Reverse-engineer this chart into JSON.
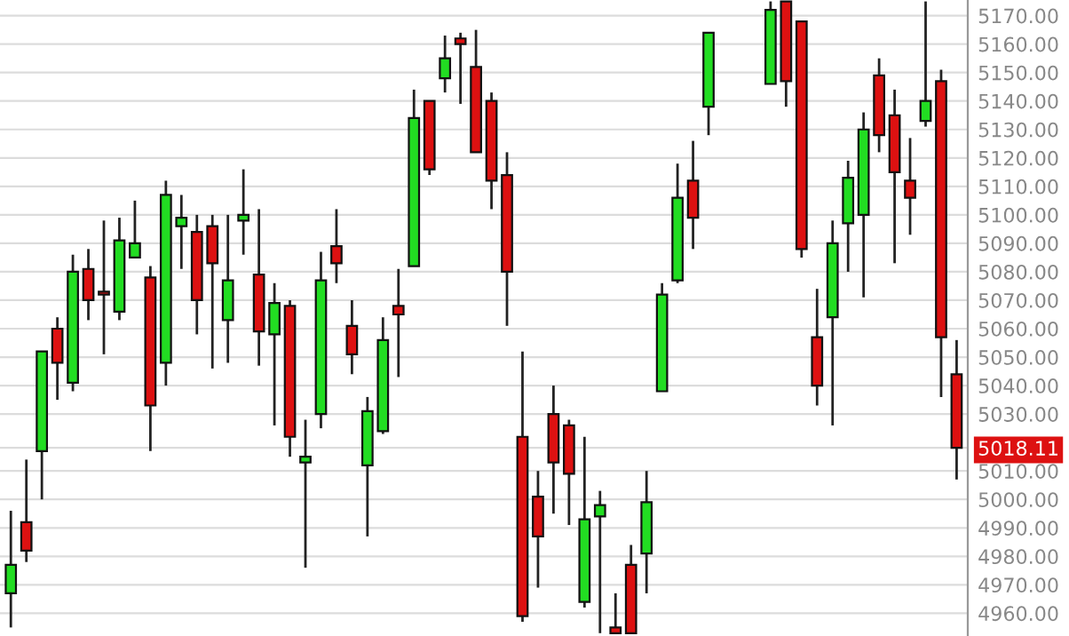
{
  "chart_data": {
    "type": "candlestick",
    "categories": [
      null,
      null,
      null,
      null,
      null,
      null,
      null,
      null,
      null,
      null,
      null,
      null,
      null,
      null,
      null,
      null,
      null,
      null,
      null,
      null,
      null,
      null,
      null,
      null,
      null,
      null,
      null,
      null,
      null,
      null,
      null,
      null,
      null,
      null,
      null,
      null,
      null,
      null,
      null,
      null,
      null,
      null,
      null,
      null,
      null,
      null,
      null,
      null,
      null,
      null,
      null,
      null,
      null,
      null,
      null,
      null,
      null,
      null,
      null,
      null,
      null,
      null
    ],
    "ohlc": [
      [
        4967,
        4996,
        4955,
        4977
      ],
      [
        4992,
        5014,
        4978,
        4982
      ],
      [
        5017,
        5052,
        5000,
        5052
      ],
      [
        5060,
        5064,
        5035,
        5048
      ],
      [
        5041,
        5086,
        5038,
        5080
      ],
      [
        5081,
        5088,
        5063,
        5070
      ],
      [
        5073,
        5098,
        5051,
        5072
      ],
      [
        5066,
        5099,
        5063,
        5091
      ],
      [
        5085,
        5105,
        5085,
        5090
      ],
      [
        5078,
        5082,
        5017,
        5033
      ],
      [
        5048,
        5112,
        5040,
        5107
      ],
      [
        5096,
        5107,
        5081,
        5099
      ],
      [
        5094,
        5100,
        5058,
        5070
      ],
      [
        5096,
        5100,
        5046,
        5083
      ],
      [
        5063,
        5100,
        5048,
        5077
      ],
      [
        5098,
        5116,
        5086,
        5100
      ],
      [
        5079,
        5102,
        5047,
        5059
      ],
      [
        5058,
        5076,
        5026,
        5069
      ],
      [
        5068,
        5070,
        5015,
        5022
      ],
      [
        5013,
        5028,
        4976,
        5015
      ],
      [
        5030,
        5087,
        5025,
        5077
      ],
      [
        5089,
        5102,
        5076,
        5083
      ],
      [
        5061,
        5070,
        5044,
        5051
      ],
      [
        5012,
        5036,
        4987,
        5031
      ],
      [
        5024,
        5064,
        5023,
        5056
      ],
      [
        5068,
        5081,
        5043,
        5065
      ],
      [
        5082,
        5144,
        5082,
        5134
      ],
      [
        5140,
        5140,
        5114,
        5116
      ],
      [
        5148,
        5163,
        5143,
        5155
      ],
      [
        5162,
        5164,
        5139,
        5160
      ],
      [
        5152,
        5165,
        5122,
        5122
      ],
      [
        5140,
        5143,
        5102,
        5112
      ],
      [
        5114,
        5122,
        5061,
        5080
      ],
      [
        5022,
        5052,
        4957,
        4959
      ],
      [
        5001,
        5010,
        4969,
        4987
      ],
      [
        5030,
        5040,
        4995,
        5013
      ],
      [
        5026,
        5028,
        4991,
        5009
      ],
      [
        4964,
        5022,
        4962,
        4993
      ],
      [
        4994,
        5003,
        4953,
        4998
      ],
      [
        4955,
        4967,
        4953,
        4953
      ],
      [
        4977,
        4984,
        4953,
        4953
      ],
      [
        4981,
        5010,
        4967,
        4999
      ],
      [
        5038,
        5076,
        5038,
        5072
      ],
      [
        5077,
        5118,
        5076,
        5106
      ],
      [
        5112,
        5126,
        5088,
        5099
      ],
      [
        5138,
        5164,
        5128,
        5164
      ],
      null,
      null,
      null,
      [
        5146,
        5175,
        5146,
        5172
      ],
      [
        5175,
        5175,
        5138,
        5147
      ],
      [
        5168,
        5168,
        5085,
        5088
      ],
      [
        5057,
        5074,
        5033,
        5040
      ],
      [
        5064,
        5098,
        5026,
        5090
      ],
      [
        5097,
        5119,
        5080,
        5113
      ],
      [
        5100,
        5136,
        5071,
        5130
      ],
      [
        5149,
        5155,
        5122,
        5128
      ],
      [
        5135,
        5144,
        5083,
        5115
      ],
      [
        5112,
        5127,
        5093,
        5106
      ],
      [
        5133,
        5175,
        5131,
        5140
      ],
      [
        5147,
        5151,
        5036,
        5057
      ],
      [
        5044,
        5056,
        5007,
        5018.11
      ]
    ],
    "colors": [
      "#22dd22",
      "#dd1111",
      "#22dd22",
      "#dd1111",
      "#22dd22",
      "#dd1111",
      "#dd1111",
      "#22dd22",
      "#22dd22",
      "#dd1111",
      "#22dd22",
      "#22dd22",
      "#dd1111",
      "#dd1111",
      "#22dd22",
      "#22dd22",
      "#dd1111",
      "#22dd22",
      "#dd1111",
      "#22dd22",
      "#22dd22",
      "#dd1111",
      "#dd1111",
      "#22dd22",
      "#22dd22",
      "#dd1111",
      "#22dd22",
      "#dd1111",
      "#22dd22",
      "#dd1111",
      "#dd1111",
      "#dd1111",
      "#dd1111",
      "#dd1111",
      "#dd1111",
      "#dd1111",
      "#dd1111",
      "#22dd22",
      "#22dd22",
      "#dd1111",
      "#dd1111",
      "#22dd22",
      "#22dd22",
      "#22dd22",
      "#dd1111",
      "#22dd22",
      null,
      null,
      null,
      "#22dd22",
      "#dd1111",
      "#dd1111",
      "#dd1111",
      "#22dd22",
      "#22dd22",
      "#22dd22",
      "#dd1111",
      "#dd1111",
      "#dd1111",
      "#22dd22",
      "#dd1111",
      "#dd1111"
    ],
    "ylim": [
      4952,
      5175.5
    ],
    "yticks": [
      {
        "value": 4960,
        "label": "4960.00"
      },
      {
        "value": 4970,
        "label": "4970.00"
      },
      {
        "value": 4980,
        "label": "4980.00"
      },
      {
        "value": 4990,
        "label": "4990.00"
      },
      {
        "value": 5000,
        "label": "5000.00"
      },
      {
        "value": 5010,
        "label": "5010.00"
      },
      {
        "value": 5018.11,
        "label": "5018.11"
      },
      {
        "value": 5030,
        "label": "5030.00"
      },
      {
        "value": 5040,
        "label": "5040.00"
      },
      {
        "value": 5050,
        "label": "5050.00"
      },
      {
        "value": 5060,
        "label": "5060.00"
      },
      {
        "value": 5070,
        "label": "5070.00"
      },
      {
        "value": 5080,
        "label": "5080.00"
      },
      {
        "value": 5090,
        "label": "5090.00"
      },
      {
        "value": 5100,
        "label": "5100.00"
      },
      {
        "value": 5110,
        "label": "5110.00"
      },
      {
        "value": 5120,
        "label": "5120.00"
      },
      {
        "value": 5130,
        "label": "5130.00"
      },
      {
        "value": 5140,
        "label": "5140.00"
      },
      {
        "value": 5150,
        "label": "5150.00"
      },
      {
        "value": 5160,
        "label": "5160.00"
      },
      {
        "value": 5170,
        "label": "5170.00"
      }
    ],
    "grid": "y"
  }
}
